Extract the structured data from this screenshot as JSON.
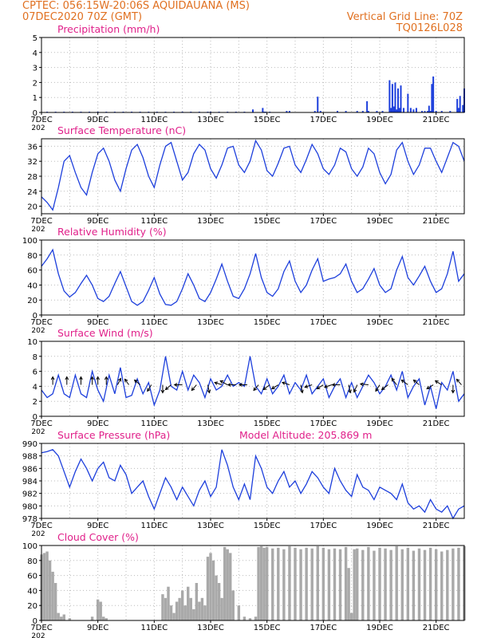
{
  "header": {
    "line1_left": "CPTEC:   056:15W-20:06S   AQUIDAUANA (MS)",
    "line2_left": "07DEC2020 70Z (GMT)",
    "line2_right": "Vertical Grid Line: 70Z",
    "line3_right": "TQ0126L028"
  },
  "colors": {
    "header": "#e07020",
    "title": "#e0208a",
    "line": "#1d3fdc",
    "cloud": "#a9a9a9",
    "arrow": "#000000"
  },
  "x_ticks": [
    "7DEC",
    "9DEC",
    "11DEC",
    "13DEC",
    "15DEC",
    "17DEC",
    "19DEC",
    "21DEC"
  ],
  "x_tick_prefix": "202",
  "x_range_days": [
    7,
    22.0
  ],
  "chart_data": [
    {
      "id": "precip",
      "type": "bar",
      "title": "Precipitation   (mm/h)",
      "ylim": [
        0,
        5
      ],
      "yticks": [
        0,
        1,
        2,
        3,
        4,
        5
      ],
      "x": [
        7.2,
        7.5,
        7.8,
        8.1,
        8.4,
        8.7,
        9.0,
        9.3,
        9.6,
        9.9,
        10.2,
        10.5,
        10.8,
        11.1,
        11.4,
        11.7,
        12.0,
        12.3,
        12.6,
        12.9,
        13.0,
        13.3,
        13.6,
        13.9,
        14.2,
        14.5,
        14.85,
        14.9,
        14.95,
        15.1,
        15.7,
        15.8,
        16.7,
        16.8,
        16.9,
        17.5,
        17.8,
        18.2,
        18.4,
        18.55,
        18.6,
        18.9,
        19.1,
        19.35,
        19.4,
        19.45,
        19.5,
        19.55,
        19.6,
        19.65,
        19.7,
        19.75,
        19.85,
        20.0,
        20.1,
        20.2,
        20.3,
        20.5,
        20.6,
        20.7,
        20.75,
        20.8,
        20.85,
        20.9,
        21.0,
        21.2,
        21.5,
        21.75,
        21.8,
        21.85,
        21.95,
        22.0
      ],
      "values": [
        0.05,
        0.05,
        0.05,
        0.05,
        0.05,
        0.05,
        0.05,
        0.05,
        0.05,
        0.05,
        0.05,
        0.05,
        0.05,
        0.05,
        0.05,
        0.05,
        0.05,
        0.05,
        0.05,
        0.05,
        0.05,
        0.05,
        0.05,
        0.05,
        0.05,
        0.2,
        0.3,
        0.05,
        0.05,
        0.05,
        0.1,
        0.1,
        0.1,
        1.05,
        0.1,
        0.1,
        0.1,
        0.1,
        0.1,
        0.75,
        0.1,
        0.1,
        0.1,
        2.15,
        0.3,
        1.9,
        0.4,
        2.0,
        0.2,
        1.6,
        0.3,
        1.8,
        0.3,
        1.25,
        0.3,
        0.2,
        0.3,
        0.1,
        0.1,
        0.1,
        0.45,
        0.1,
        1.9,
        2.4,
        0.1,
        0.1,
        0.1,
        0.9,
        0.3,
        1.1,
        0.5,
        1.6
      ]
    },
    {
      "id": "temp",
      "type": "line",
      "title": "Surface Temperature  (nC)",
      "ylim": [
        18,
        38
      ],
      "yticks": [
        20,
        24,
        28,
        32,
        36
      ],
      "x": [
        7.0,
        7.2,
        7.4,
        7.6,
        7.8,
        8.0,
        8.2,
        8.4,
        8.6,
        8.8,
        9.0,
        9.2,
        9.4,
        9.6,
        9.8,
        10.0,
        10.2,
        10.4,
        10.6,
        10.8,
        11.0,
        11.2,
        11.4,
        11.6,
        11.8,
        12.0,
        12.2,
        12.4,
        12.6,
        12.8,
        13.0,
        13.2,
        13.4,
        13.6,
        13.8,
        14.0,
        14.2,
        14.4,
        14.6,
        14.8,
        15.0,
        15.2,
        15.4,
        15.6,
        15.8,
        16.0,
        16.2,
        16.4,
        16.6,
        16.8,
        17.0,
        17.2,
        17.4,
        17.6,
        17.8,
        18.0,
        18.2,
        18.4,
        18.6,
        18.8,
        19.0,
        19.2,
        19.4,
        19.6,
        19.8,
        20.0,
        20.2,
        20.4,
        20.6,
        20.8,
        21.0,
        21.2,
        21.4,
        21.6,
        21.8,
        22.0
      ],
      "values": [
        22.5,
        21.0,
        19.0,
        25.0,
        32.0,
        33.5,
        29.0,
        25.0,
        23.0,
        29.0,
        34.0,
        35.5,
        32.0,
        27.0,
        24.0,
        30.0,
        35.0,
        36.5,
        33.0,
        28.0,
        25.0,
        31.0,
        36.0,
        37.0,
        32.0,
        27.0,
        29.0,
        34.0,
        36.5,
        35.0,
        30.0,
        27.5,
        31.0,
        35.5,
        36.0,
        31.0,
        29.0,
        32.0,
        37.5,
        35.0,
        29.5,
        28.0,
        31.5,
        35.5,
        36.0,
        31.0,
        29.0,
        32.5,
        36.5,
        34.0,
        30.0,
        28.5,
        31.0,
        35.5,
        34.5,
        30.0,
        28.0,
        30.5,
        35.5,
        34.0,
        29.0,
        26.0,
        28.5,
        35.0,
        37.0,
        32.0,
        28.5,
        31.0,
        35.5,
        35.5,
        32.0,
        29.0,
        33.0,
        37.0,
        36.0,
        32.0
      ]
    },
    {
      "id": "rh",
      "type": "line",
      "title": "Relative Humidity  (%)",
      "ylim": [
        0,
        100
      ],
      "yticks": [
        0,
        20,
        40,
        60,
        80,
        100
      ],
      "x": [
        7.0,
        7.2,
        7.4,
        7.6,
        7.8,
        8.0,
        8.2,
        8.4,
        8.6,
        8.8,
        9.0,
        9.2,
        9.4,
        9.6,
        9.8,
        10.0,
        10.2,
        10.4,
        10.6,
        10.8,
        11.0,
        11.2,
        11.4,
        11.6,
        11.8,
        12.0,
        12.2,
        12.4,
        12.6,
        12.8,
        13.0,
        13.2,
        13.4,
        13.6,
        13.8,
        14.0,
        14.2,
        14.4,
        14.6,
        14.8,
        15.0,
        15.2,
        15.4,
        15.6,
        15.8,
        16.0,
        16.2,
        16.4,
        16.6,
        16.8,
        17.0,
        17.2,
        17.4,
        17.6,
        17.8,
        18.0,
        18.2,
        18.4,
        18.6,
        18.8,
        19.0,
        19.2,
        19.4,
        19.6,
        19.8,
        20.0,
        20.2,
        20.4,
        20.6,
        20.8,
        21.0,
        21.2,
        21.4,
        21.6,
        21.8,
        22.0
      ],
      "values": [
        65,
        75,
        87,
        55,
        32,
        24,
        30,
        42,
        53,
        40,
        22,
        18,
        25,
        42,
        58,
        38,
        18,
        13,
        18,
        33,
        50,
        28,
        14,
        13,
        18,
        35,
        55,
        40,
        22,
        18,
        30,
        48,
        68,
        45,
        25,
        22,
        35,
        55,
        82,
        50,
        30,
        25,
        35,
        58,
        72,
        45,
        30,
        40,
        60,
        75,
        45,
        48,
        50,
        55,
        68,
        45,
        30,
        35,
        48,
        62,
        40,
        30,
        35,
        60,
        78,
        50,
        40,
        52,
        65,
        45,
        30,
        35,
        55,
        85,
        45,
        55
      ]
    },
    {
      "id": "wind",
      "type": "line",
      "title": "Surface Wind  (m/s)",
      "ylim": [
        0,
        10
      ],
      "yticks": [
        0,
        2,
        4,
        6,
        8,
        10
      ],
      "x": [
        7.0,
        7.2,
        7.4,
        7.6,
        7.8,
        8.0,
        8.2,
        8.4,
        8.6,
        8.8,
        9.0,
        9.2,
        9.4,
        9.6,
        9.8,
        10.0,
        10.2,
        10.4,
        10.6,
        10.8,
        11.0,
        11.2,
        11.4,
        11.6,
        11.8,
        12.0,
        12.2,
        12.4,
        12.6,
        12.8,
        13.0,
        13.2,
        13.4,
        13.6,
        13.8,
        14.0,
        14.2,
        14.4,
        14.6,
        14.8,
        15.0,
        15.2,
        15.4,
        15.6,
        15.8,
        16.0,
        16.2,
        16.4,
        16.6,
        16.8,
        17.0,
        17.2,
        17.4,
        17.6,
        17.8,
        18.0,
        18.2,
        18.4,
        18.6,
        18.8,
        19.0,
        19.2,
        19.4,
        19.6,
        19.8,
        20.0,
        20.2,
        20.4,
        20.6,
        20.8,
        21.0,
        21.2,
        21.4,
        21.6,
        21.8,
        22.0
      ],
      "values": [
        3.5,
        2.5,
        3.0,
        5.5,
        3.0,
        2.5,
        5.5,
        3.0,
        2.5,
        6.0,
        3.5,
        2.0,
        5.5,
        3.0,
        6.5,
        2.5,
        2.8,
        5.0,
        3.0,
        4.5,
        1.5,
        3.5,
        8.0,
        4.0,
        3.5,
        6.0,
        3.5,
        5.5,
        4.5,
        2.5,
        5.0,
        3.5,
        4.0,
        5.5,
        4.0,
        4.5,
        4.0,
        8.0,
        4.0,
        3.0,
        5.0,
        3.0,
        4.0,
        5.5,
        3.0,
        4.5,
        3.5,
        5.5,
        3.0,
        4.0,
        5.0,
        2.5,
        4.0,
        5.0,
        2.5,
        4.5,
        2.5,
        4.0,
        5.5,
        4.5,
        3.0,
        4.0,
        5.5,
        3.5,
        6.0,
        2.5,
        4.0,
        5.0,
        1.5,
        4.0,
        1.0,
        4.5,
        3.5,
        6.0,
        2.0,
        3.0
      ],
      "arrows": [
        [
          7.4,
          4.2,
          0,
          1
        ],
        [
          7.9,
          4.2,
          0,
          1
        ],
        [
          8.4,
          4.2,
          0,
          1
        ],
        [
          8.8,
          4.2,
          0,
          1
        ],
        [
          9.0,
          4.2,
          0,
          1
        ],
        [
          9.3,
          4.2,
          0,
          1
        ],
        [
          9.7,
          4.2,
          0.4,
          0.8
        ],
        [
          10.1,
          4.2,
          -0.5,
          0.7
        ],
        [
          10.5,
          4.2,
          -0.7,
          0.6
        ],
        [
          10.9,
          4.2,
          -0.5,
          -0.8
        ],
        [
          11.3,
          4.2,
          0,
          -1
        ],
        [
          11.6,
          4.2,
          -0.7,
          -0.6
        ],
        [
          12.0,
          4.2,
          -1,
          0
        ],
        [
          12.5,
          4.2,
          -0.6,
          -0.7
        ],
        [
          12.9,
          4.2,
          0.2,
          -1
        ],
        [
          13.4,
          4.2,
          -0.9,
          0.3
        ],
        [
          13.6,
          4.2,
          -0.9,
          0.5
        ],
        [
          13.9,
          4.2,
          -1,
          0
        ],
        [
          14.3,
          4.2,
          -1,
          0
        ],
        [
          14.7,
          4.2,
          -0.6,
          -0.7
        ],
        [
          15.1,
          4.2,
          -0.8,
          -0.6
        ],
        [
          15.4,
          4.2,
          -0.8,
          -0.5
        ],
        [
          15.8,
          4.2,
          -0.9,
          0.3
        ],
        [
          16.2,
          4.2,
          0.2,
          -1
        ],
        [
          16.6,
          4.2,
          -0.9,
          -0.3
        ],
        [
          17.0,
          4.2,
          -0.8,
          -0.5
        ],
        [
          17.3,
          4.2,
          -0.9,
          -0.3
        ],
        [
          17.6,
          4.2,
          -1,
          0
        ],
        [
          17.9,
          4.2,
          0.2,
          -1
        ],
        [
          18.2,
          4.2,
          -0.4,
          -0.9
        ],
        [
          18.6,
          4.2,
          -1,
          0.1
        ],
        [
          19.0,
          4.2,
          -0.5,
          -0.8
        ],
        [
          19.3,
          4.2,
          -0.8,
          -0.6
        ],
        [
          19.6,
          4.2,
          -0.6,
          0.8
        ],
        [
          20.0,
          4.2,
          -0.8,
          0.6
        ],
        [
          20.4,
          4.2,
          -0.7,
          0.6
        ],
        [
          20.9,
          4.2,
          -0.8,
          -0.5
        ],
        [
          21.2,
          4.2,
          -0.8,
          0.5
        ],
        [
          21.6,
          4.2,
          0,
          -1
        ],
        [
          21.9,
          4.2,
          -0.6,
          0.7
        ]
      ]
    },
    {
      "id": "pres",
      "type": "line",
      "title": "Surface Pressure  (hPa)",
      "annotation": "Model Altitude: 205.869  m",
      "ylim": [
        978,
        990
      ],
      "yticks": [
        978,
        980,
        982,
        984,
        986,
        988,
        990
      ],
      "x": [
        7.0,
        7.2,
        7.4,
        7.6,
        7.8,
        8.0,
        8.2,
        8.4,
        8.6,
        8.8,
        9.0,
        9.2,
        9.4,
        9.6,
        9.8,
        10.0,
        10.2,
        10.4,
        10.6,
        10.8,
        11.0,
        11.2,
        11.4,
        11.6,
        11.8,
        12.0,
        12.2,
        12.4,
        12.6,
        12.8,
        13.0,
        13.2,
        13.4,
        13.6,
        13.8,
        14.0,
        14.2,
        14.4,
        14.6,
        14.8,
        15.0,
        15.2,
        15.4,
        15.6,
        15.8,
        16.0,
        16.2,
        16.4,
        16.6,
        16.8,
        17.0,
        17.2,
        17.4,
        17.6,
        17.8,
        18.0,
        18.2,
        18.4,
        18.6,
        18.8,
        19.0,
        19.2,
        19.4,
        19.6,
        19.8,
        20.0,
        20.2,
        20.4,
        20.6,
        20.8,
        21.0,
        21.2,
        21.4,
        21.6,
        21.8,
        22.0
      ],
      "values": [
        988.5,
        988.7,
        989.0,
        988.0,
        985.5,
        983.0,
        985.5,
        987.5,
        986.0,
        984.0,
        986.0,
        987.0,
        984.5,
        984.0,
        986.5,
        985.0,
        982.0,
        983.0,
        984.0,
        981.5,
        979.5,
        982.0,
        984.5,
        983.0,
        981.0,
        983.0,
        981.5,
        980.0,
        982.5,
        984.0,
        981.5,
        983.0,
        989.0,
        986.5,
        983.0,
        981.0,
        983.5,
        981.0,
        988.0,
        986.0,
        983.0,
        982.0,
        984.0,
        985.5,
        983.0,
        984.0,
        982.0,
        983.5,
        985.5,
        984.5,
        983.0,
        982.0,
        986.0,
        984.0,
        982.5,
        981.5,
        985.0,
        983.0,
        982.5,
        981.0,
        983.0,
        982.5,
        982.0,
        981.0,
        983.5,
        980.5,
        979.5,
        980.0,
        979.0,
        981.0,
        979.5,
        979.0,
        980.0,
        978.0,
        979.5,
        980.0
      ]
    },
    {
      "id": "cloud",
      "type": "bar",
      "title": "Cloud Cover  (%)",
      "ylim": [
        0,
        100
      ],
      "yticks": [
        0,
        20,
        40,
        60,
        80,
        100
      ],
      "x": [
        7.0,
        7.1,
        7.2,
        7.3,
        7.4,
        7.5,
        7.6,
        7.7,
        7.8,
        8.0,
        8.8,
        9.0,
        9.1,
        9.2,
        9.3,
        11.3,
        11.4,
        11.5,
        11.6,
        11.7,
        11.8,
        11.9,
        12.0,
        12.1,
        12.2,
        12.3,
        12.4,
        12.5,
        12.6,
        12.7,
        12.8,
        12.9,
        13.0,
        13.1,
        13.2,
        13.3,
        13.4,
        13.5,
        13.6,
        13.7,
        13.8,
        14.0,
        14.2,
        14.4,
        14.6,
        14.7,
        14.8,
        14.9,
        15.0,
        15.2,
        15.4,
        15.6,
        15.8,
        16.0,
        16.2,
        16.4,
        16.6,
        16.8,
        17.0,
        17.2,
        17.4,
        17.6,
        17.8,
        17.9,
        18.0,
        18.1,
        18.2,
        18.4,
        18.6,
        18.8,
        19.0,
        19.2,
        19.4,
        19.6,
        19.8,
        20.0,
        20.2,
        20.4,
        20.6,
        20.8,
        21.0,
        21.2,
        21.4,
        21.6,
        21.8,
        22.0
      ],
      "values": [
        88,
        90,
        92,
        80,
        65,
        50,
        10,
        5,
        8,
        3,
        5,
        28,
        25,
        5,
        3,
        35,
        30,
        45,
        20,
        10,
        25,
        30,
        40,
        20,
        45,
        30,
        15,
        50,
        25,
        30,
        20,
        85,
        90,
        80,
        60,
        50,
        30,
        98,
        95,
        90,
        40,
        20,
        5,
        3,
        5,
        98,
        99,
        97,
        98,
        96,
        97,
        95,
        99,
        97,
        95,
        97,
        96,
        99,
        97,
        95,
        96,
        95,
        98,
        70,
        10,
        95,
        96,
        94,
        98,
        93,
        97,
        96,
        94,
        99,
        95,
        97,
        93,
        96,
        94,
        97,
        95,
        92,
        94,
        96,
        97,
        99
      ]
    }
  ]
}
